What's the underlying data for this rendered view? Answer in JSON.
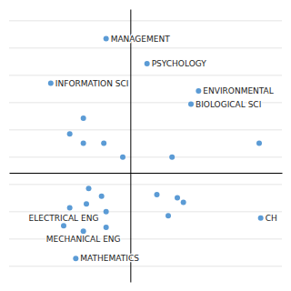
{
  "chart_data": {
    "type": "scatter",
    "x": [
      -0.32,
      -1.05,
      -0.62,
      -0.8,
      -0.62,
      -0.35,
      -0.1,
      1.7,
      0.22,
      0.9,
      0.8,
      0.55,
      -0.55,
      -0.38,
      -0.58,
      -0.8,
      -0.32,
      0.35,
      0.62,
      0.7,
      0.5,
      1.72,
      -0.88,
      -0.62,
      -0.32,
      -0.72
    ],
    "y": [
      1.72,
      1.15,
      0.7,
      0.5,
      0.38,
      0.38,
      0.2,
      0.38,
      1.4,
      1.05,
      0.88,
      0.2,
      -0.2,
      -0.3,
      -0.4,
      -0.45,
      -0.5,
      -0.28,
      -0.32,
      -0.38,
      -0.55,
      -0.58,
      -0.68,
      -0.75,
      -0.7,
      -1.1
    ],
    "labels": [
      "MANAGEMENT",
      "INFORMATION SCI",
      null,
      null,
      null,
      null,
      null,
      null,
      "PSYCHOLOGY",
      "ENVIRONMENTAL",
      "BIOLOGICAL SCI",
      null,
      null,
      null,
      null,
      null,
      null,
      null,
      null,
      null,
      null,
      "CH",
      "ELECTRICAL ENG",
      "MECHANICAL ENG",
      null,
      "MATHEMATICS"
    ],
    "xlim": [
      -1.6,
      2.0
    ],
    "ylim": [
      -1.4,
      2.1
    ],
    "yticks": [
      -1.2,
      -0.85,
      -0.5,
      -0.15,
      0.2,
      0.55,
      0.9,
      1.25,
      1.6,
      1.95
    ],
    "grid": true,
    "tick_labels": false,
    "color": "#5b9bd5"
  }
}
